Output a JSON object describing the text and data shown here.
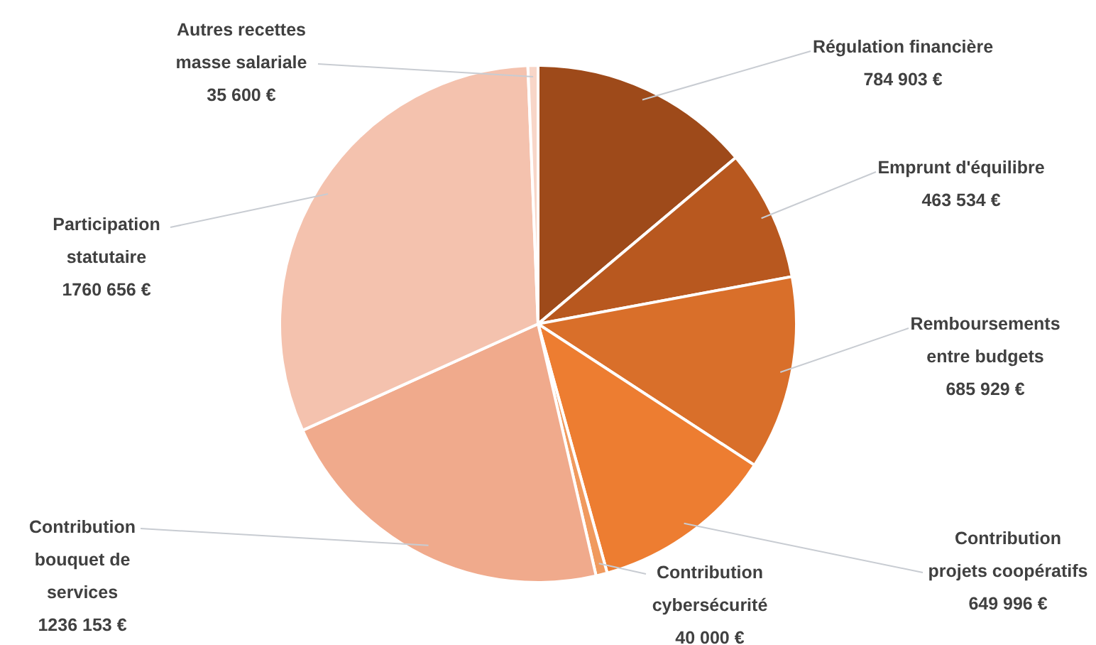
{
  "chart_data": {
    "type": "pie",
    "categories": [
      "Régulation financière",
      "Emprunt d'équilibre",
      "Remboursements entre budgets",
      "Contribution projets coopératifs",
      "Contribution cybersécurité",
      "Contribution bouquet de services",
      "Participation statutaire",
      "Autres recettes masse salariale"
    ],
    "values": [
      784903,
      463534,
      685929,
      649996,
      40000,
      1236153,
      1760656,
      35600
    ],
    "value_labels": [
      "784 903 €",
      "463 534 €",
      "685 929 €",
      "649 996 €",
      "40 000 €",
      "1236 153 €",
      "1760 656 €",
      "35 600 €"
    ],
    "colors": [
      "#9e4a1a",
      "#b8581f",
      "#d96f2a",
      "#ed7d31",
      "#f09a5e",
      "#f0aa8c",
      "#f4c2ae",
      "#f8d6c8"
    ]
  }
}
